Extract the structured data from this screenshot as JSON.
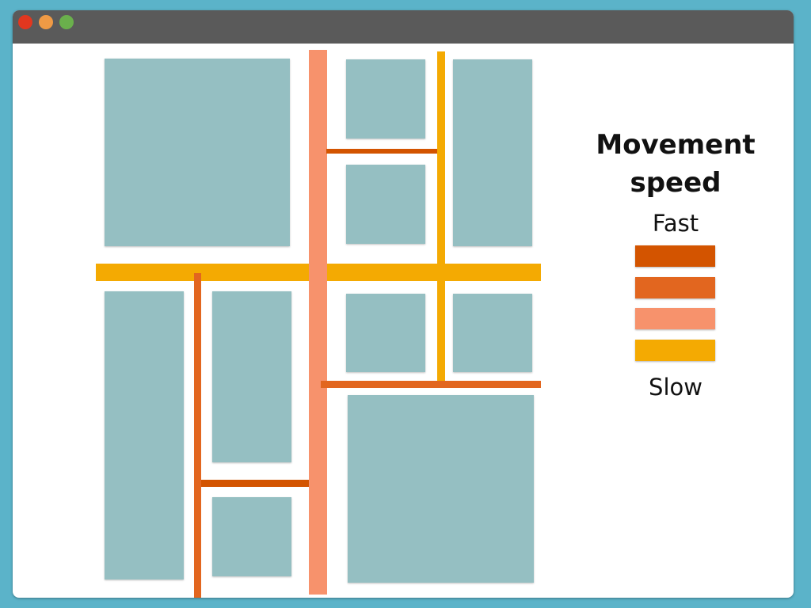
{
  "window": {
    "controls": [
      {
        "name": "close",
        "color": "#e2371f"
      },
      {
        "name": "minimize",
        "color": "#ef9a45"
      },
      {
        "name": "maximize",
        "color": "#6ab04c"
      }
    ],
    "titlebar_color": "#5a5a5a"
  },
  "colors": {
    "block": "#95bfc2",
    "speed_fast": "#d35400",
    "speed_medium_fast": "#e2661f",
    "speed_medium_slow": "#f7926c",
    "speed_slow": "#f4aa02"
  },
  "legend": {
    "title_line1": "Movement",
    "title_line2": "speed",
    "top_label": "Fast",
    "bottom_label": "Slow",
    "swatches": [
      "#d35400",
      "#e2661f",
      "#f7926c",
      "#f4aa02"
    ]
  }
}
